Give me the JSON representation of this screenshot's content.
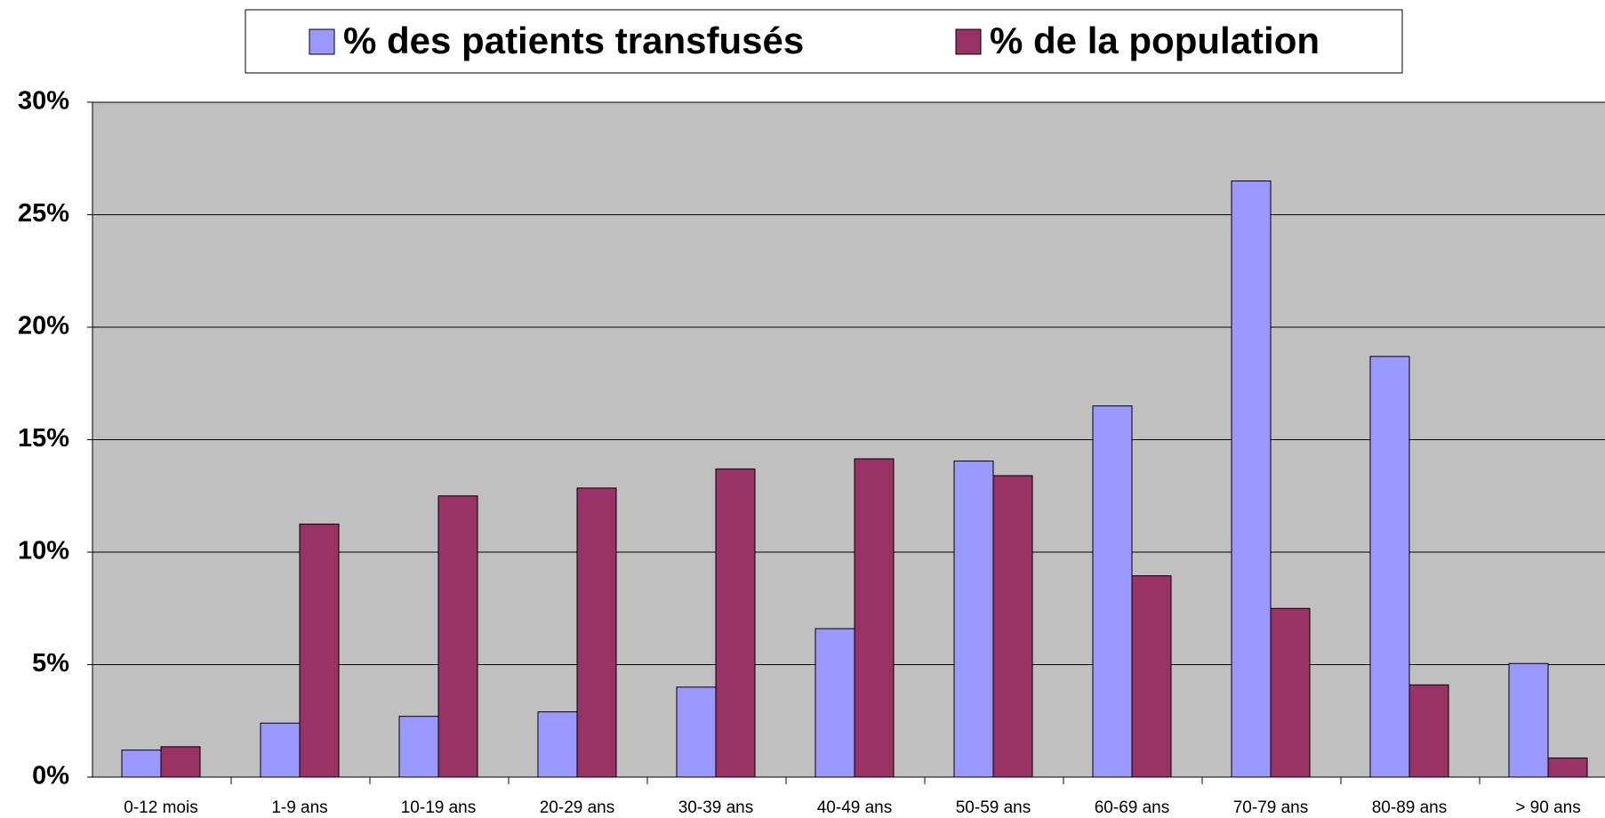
{
  "chart_data": {
    "type": "bar",
    "categories": [
      "0-12 mois",
      "1-9 ans",
      "10-19 ans",
      "20-29 ans",
      "30-39 ans",
      "40-49 ans",
      "50-59 ans",
      "60-69 ans",
      "70-79 ans",
      "80-89 ans",
      "> 90 ans"
    ],
    "series": [
      {
        "name": "% des patients transfusés",
        "color": "#9999ff",
        "values": [
          1.2,
          2.4,
          2.7,
          2.9,
          4.0,
          6.6,
          14.05,
          16.5,
          26.5,
          18.7,
          5.05
        ]
      },
      {
        "name": "% de la population",
        "color": "#993366",
        "values": [
          1.35,
          11.25,
          12.5,
          12.85,
          13.7,
          14.15,
          13.4,
          8.95,
          7.5,
          4.1,
          0.85
        ]
      }
    ],
    "ylim": [
      0,
      30
    ],
    "yticks": [
      {
        "value": 0,
        "label": "0%"
      },
      {
        "value": 5,
        "label": "5%"
      },
      {
        "value": 10,
        "label": "10%"
      },
      {
        "value": 15,
        "label": "15%"
      },
      {
        "value": 20,
        "label": "20%"
      },
      {
        "value": 25,
        "label": "25%"
      },
      {
        "value": 30,
        "label": "30%"
      }
    ],
    "grid": true,
    "legend": "top"
  }
}
